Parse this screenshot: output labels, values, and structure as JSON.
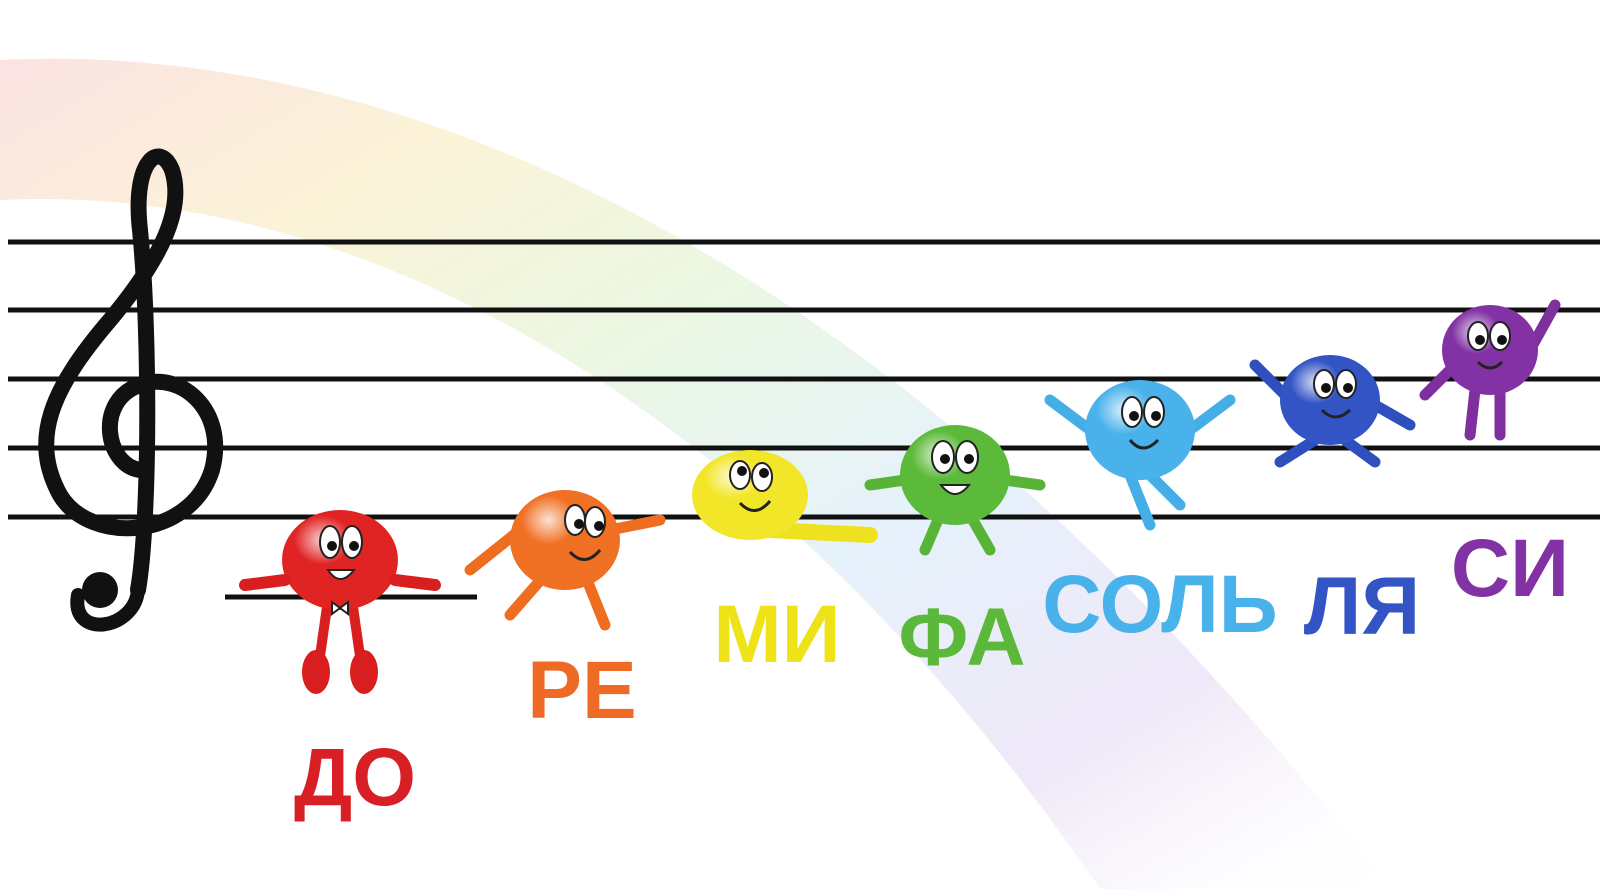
{
  "notes": [
    {
      "label": "ДО"
    },
    {
      "label": "РЕ"
    },
    {
      "label": "МИ"
    },
    {
      "label": "ФА"
    },
    {
      "label": "СОЛЬ"
    },
    {
      "label": "ЛЯ"
    },
    {
      "label": "СИ"
    }
  ]
}
